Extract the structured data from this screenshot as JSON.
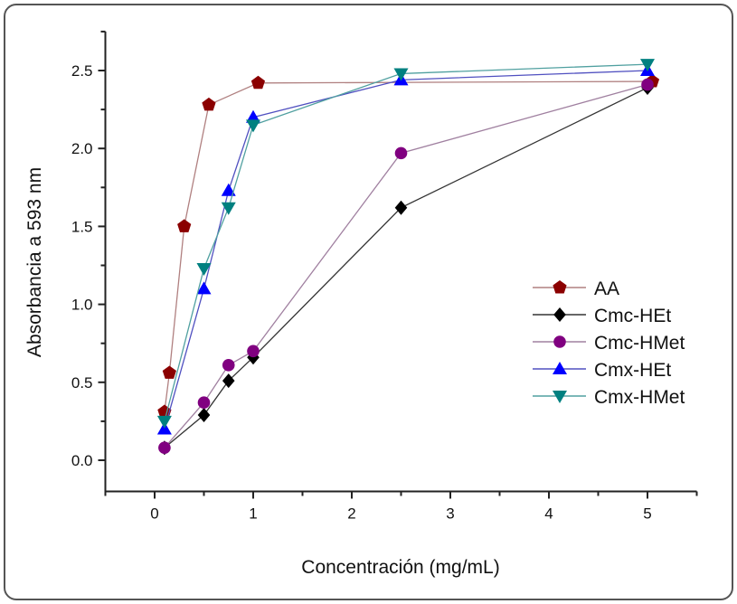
{
  "chart_data": {
    "type": "line",
    "title": "",
    "xlabel": "Concentración (mg/mL)",
    "ylabel": "Absorbancia a 593 nm",
    "xlim": [
      -0.5,
      5.5
    ],
    "ylim": [
      -0.2,
      2.75
    ],
    "xticks": [
      0,
      1,
      2,
      3,
      4,
      5
    ],
    "yticks": [
      0.0,
      0.5,
      1.0,
      1.5,
      2.0,
      2.5
    ],
    "ytick_labels": [
      "0.0",
      "0.5",
      "1.0",
      "1.5",
      "2.0",
      "2.5"
    ],
    "grid": false,
    "legend_position": "center-right",
    "series": [
      {
        "name": "AA",
        "marker": "pentagon",
        "color": "#8b0000",
        "line_color": "#b08080",
        "x": [
          0.1,
          0.15,
          0.3,
          0.55,
          1.05,
          5.05
        ],
        "y": [
          0.31,
          0.56,
          1.5,
          2.28,
          2.42,
          2.43
        ]
      },
      {
        "name": "Cmc-HEt",
        "marker": "diamond",
        "color": "#000000",
        "line_color": "#333333",
        "x": [
          0.1,
          0.5,
          0.75,
          1.0,
          2.5,
          5.0
        ],
        "y": [
          0.08,
          0.29,
          0.51,
          0.66,
          1.62,
          2.39
        ]
      },
      {
        "name": "Cmc-HMet",
        "marker": "circle",
        "color": "#800080",
        "line_color": "#a080a0",
        "x": [
          0.1,
          0.5,
          0.75,
          1.0,
          2.5,
          5.0
        ],
        "y": [
          0.08,
          0.37,
          0.61,
          0.7,
          1.97,
          2.41
        ]
      },
      {
        "name": "Cmx-HEt",
        "marker": "triangle-up",
        "color": "#0000ff",
        "line_color": "#5050c0",
        "x": [
          0.1,
          0.5,
          0.75,
          1.0,
          2.5,
          5.0
        ],
        "y": [
          0.2,
          1.1,
          1.73,
          2.2,
          2.44,
          2.5
        ]
      },
      {
        "name": "Cmx-HMet",
        "marker": "triangle-down",
        "color": "#008080",
        "line_color": "#50a0a0",
        "x": [
          0.1,
          0.5,
          0.75,
          1.0,
          2.5,
          5.0
        ],
        "y": [
          0.25,
          1.23,
          1.62,
          2.15,
          2.48,
          2.54
        ]
      }
    ]
  }
}
